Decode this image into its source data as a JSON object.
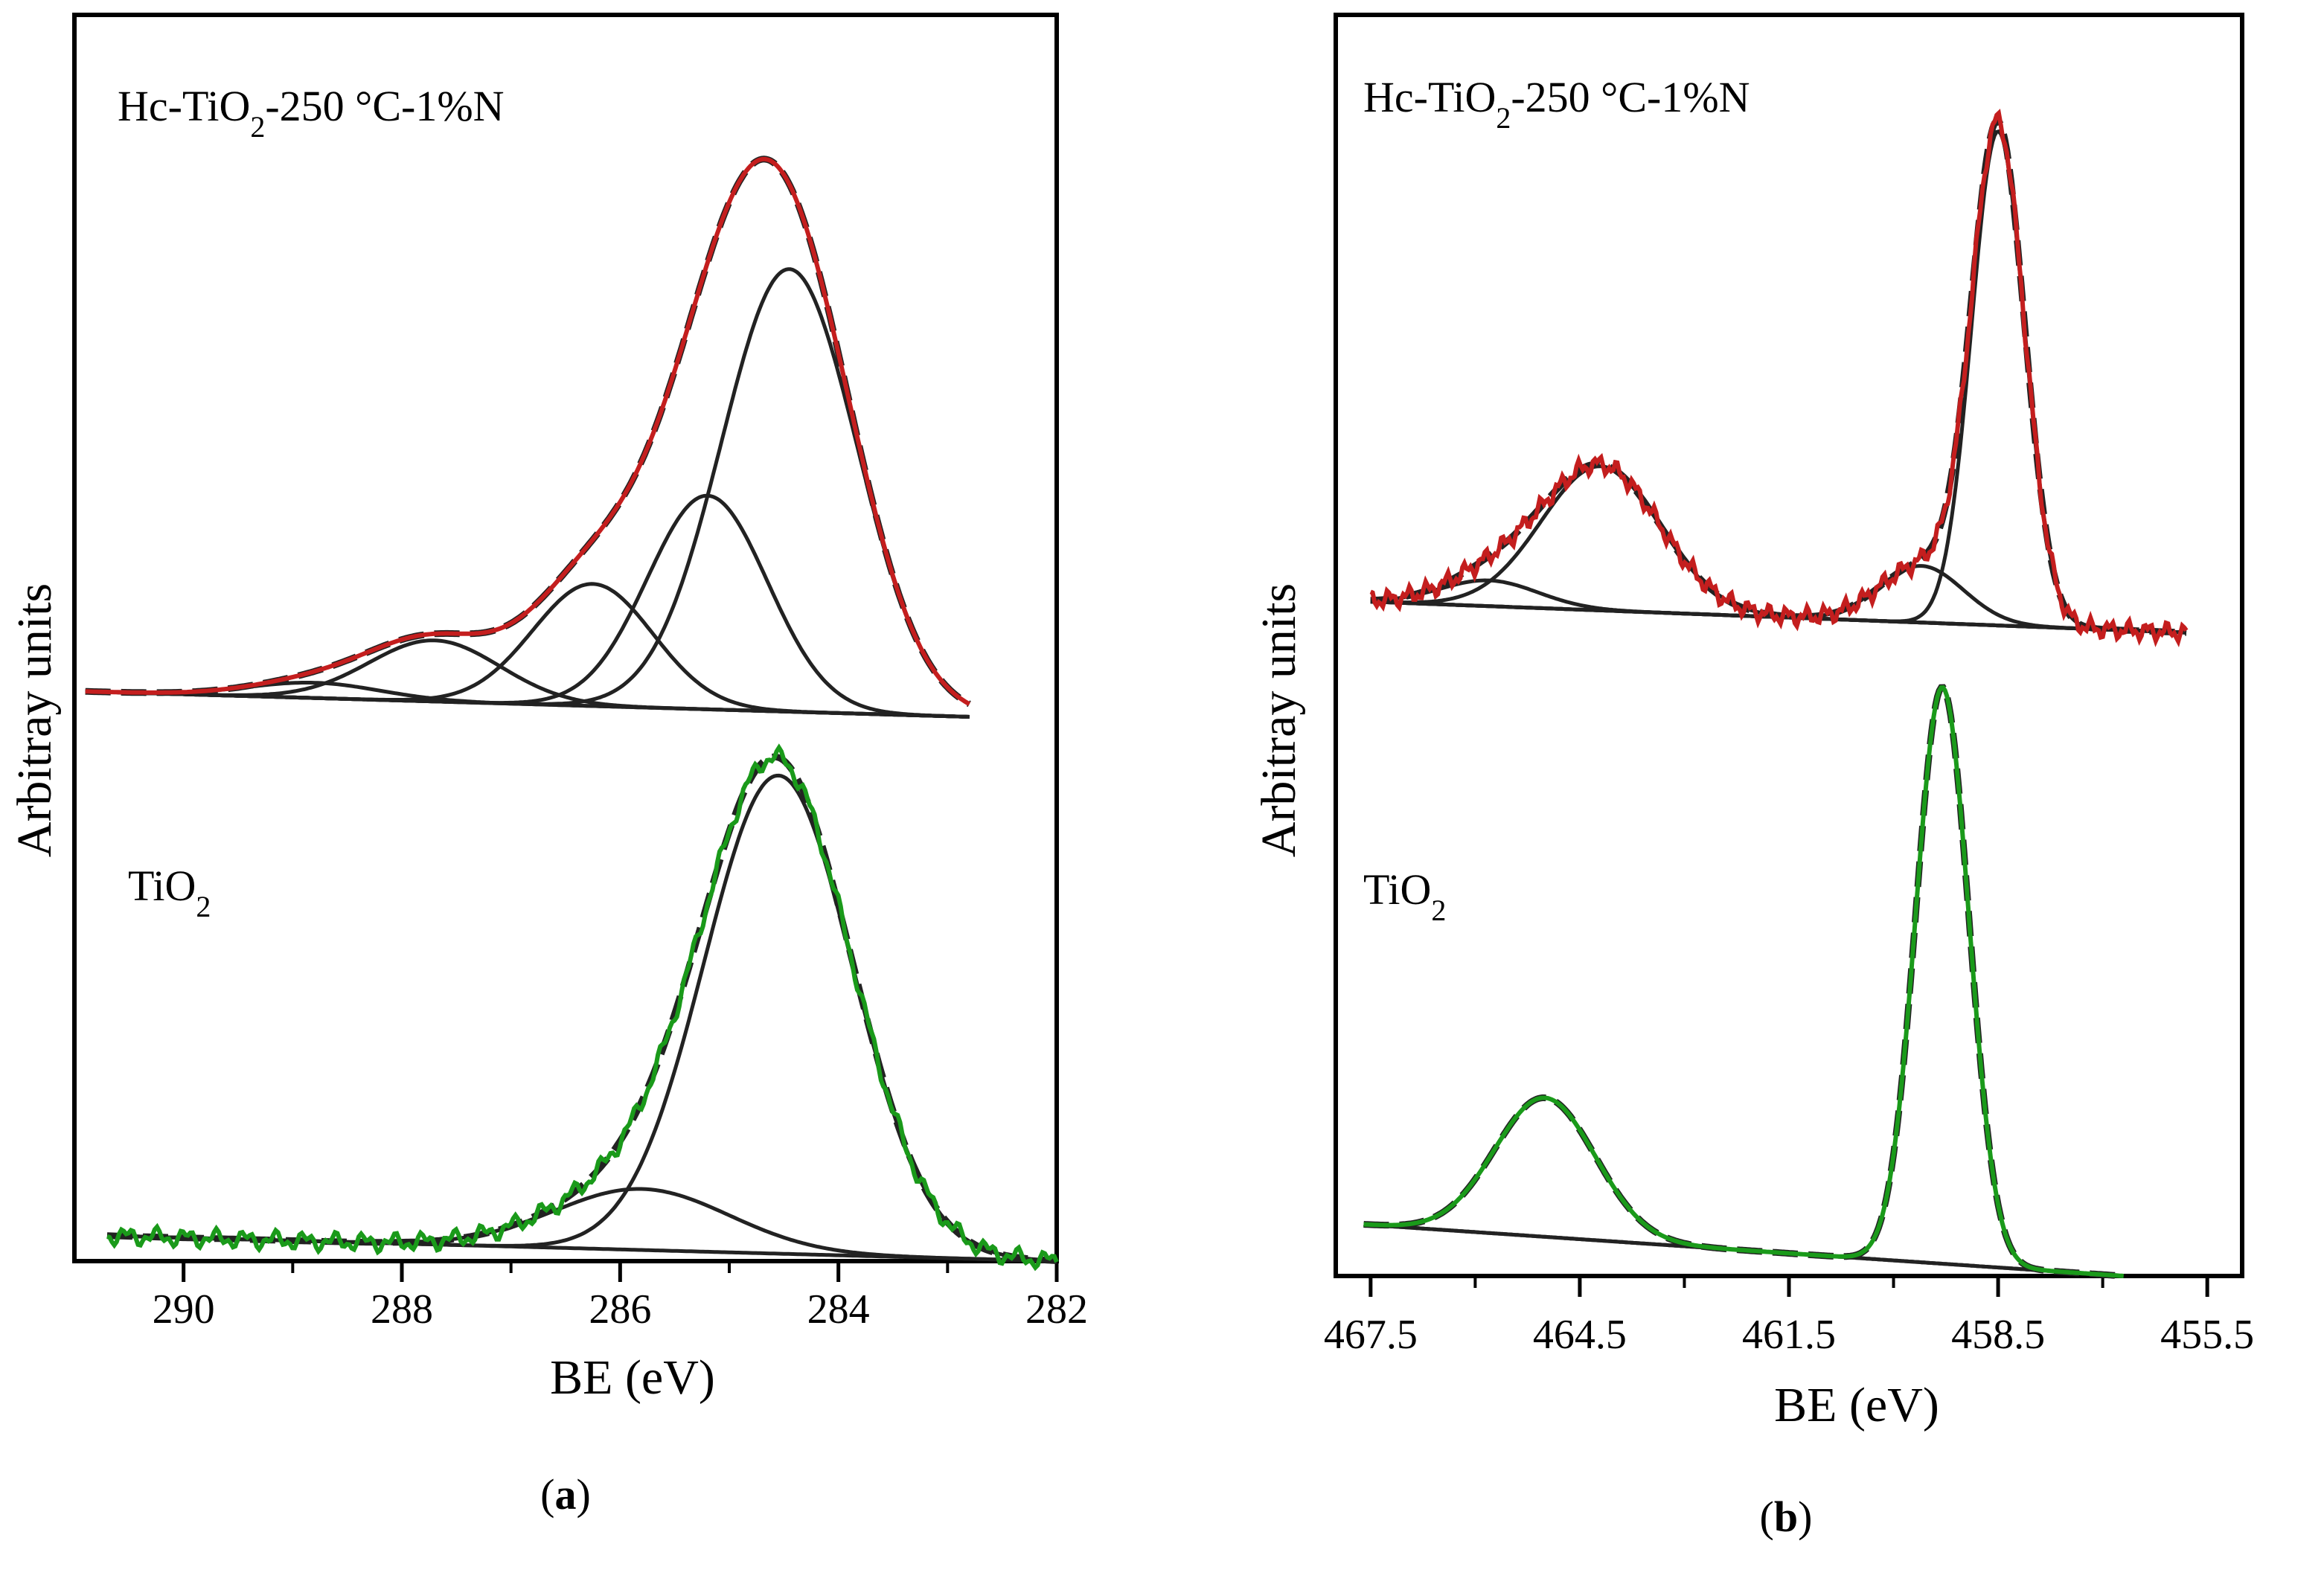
{
  "chart_data": [
    {
      "type": "line",
      "panel": "a",
      "caption": "a",
      "xlabel": "BE (eV)",
      "ylabel": "Arbitray units",
      "xlim": [
        291,
        282
      ],
      "xticks": [
        290,
        288,
        286,
        284,
        282
      ],
      "tick_labels": [
        "290",
        "288",
        "286",
        "284",
        "282"
      ],
      "ylim": [
        0,
        2.45
      ],
      "grid": false,
      "spectra": [
        {
          "label_main": "Hc-TiO",
          "label_sub": "2",
          "label_rest": "-250 °C-1%N",
          "offset": 1.12,
          "baseline": [
            [
              290.9,
              0.0
            ],
            [
              282.8,
              -0.05
            ]
          ],
          "components": [
            {
              "center": 284.45,
              "height": 0.87,
              "sigma": 0.62
            },
            {
              "center": 285.2,
              "height": 0.42,
              "sigma": 0.55
            },
            {
              "center": 286.25,
              "height": 0.24,
              "sigma": 0.55
            },
            {
              "center": 287.7,
              "height": 0.12,
              "sigma": 0.6
            },
            {
              "center": 288.8,
              "height": 0.03,
              "sigma": 0.6
            }
          ],
          "noise": 0.0,
          "fit_color": "#222222",
          "data_color": "#c41e1e"
        },
        {
          "label_main": "TiO",
          "label_sub": "2",
          "label_rest": "",
          "offset": 0.0,
          "baseline": [
            [
              290.7,
              0.05
            ],
            [
              282.0,
              0.0
            ]
          ],
          "components": [
            {
              "center": 284.55,
              "height": 0.94,
              "sigma": 0.68
            },
            {
              "center": 285.8,
              "height": 0.12,
              "sigma": 0.8
            }
          ],
          "noise": 0.02,
          "fit_color": "#222222",
          "data_color": "#1a9a1a"
        }
      ]
    },
    {
      "type": "line",
      "panel": "b",
      "caption": "b",
      "xlabel": "BE (eV)",
      "ylabel": "Arbitray units",
      "xlim": [
        468.0,
        455.0
      ],
      "xticks": [
        467.5,
        464.5,
        461.5,
        458.5,
        455.5
      ],
      "tick_labels": [
        "467.5",
        "464.5",
        "461.5",
        "458.5",
        "455.5"
      ],
      "ylim": [
        0,
        2.45
      ],
      "grid": false,
      "spectra": [
        {
          "label_main": "Hc-TiO",
          "label_sub": "2",
          "label_rest": "-250 °C-1%N",
          "offset": 1.28,
          "baseline": [
            [
              467.5,
              0.03
            ],
            [
              455.8,
              -0.03
            ]
          ],
          "components": [
            {
              "center": 458.5,
              "height": 0.96,
              "sigma": 0.38
            },
            {
              "center": 464.2,
              "height": 0.28,
              "sigma": 0.85
            },
            {
              "center": 459.6,
              "height": 0.11,
              "sigma": 0.6
            },
            {
              "center": 465.8,
              "height": 0.05,
              "sigma": 0.7
            }
          ],
          "noise": 0.02,
          "fit_color": "#222222",
          "data_color": "#c41e1e"
        },
        {
          "label_main": "TiO",
          "label_sub": "2",
          "label_rest": "",
          "offset": 0.0,
          "baseline": [
            [
              467.6,
              0.1
            ],
            [
              456.7,
              0.0
            ]
          ],
          "components": [
            {
              "center": 459.3,
              "height": 1.12,
              "sigma": 0.38
            },
            {
              "center": 465.0,
              "height": 0.27,
              "sigma": 0.72
            }
          ],
          "noise": 0.0,
          "fit_color": "#222222",
          "data_color": "#1a9a1a"
        }
      ]
    }
  ]
}
